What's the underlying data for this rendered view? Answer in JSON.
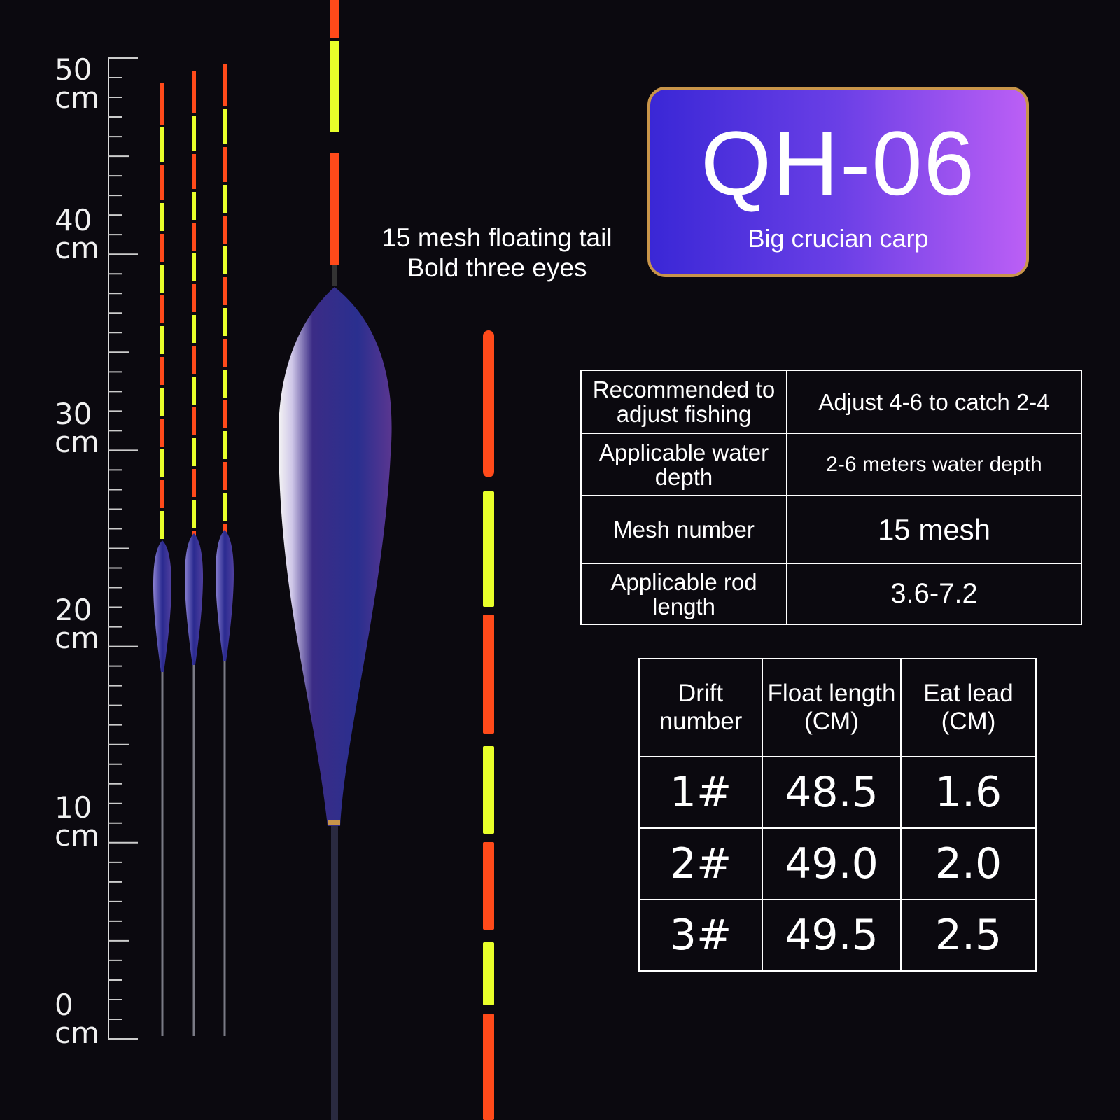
{
  "ruler": {
    "labels": [
      {
        "value": "50",
        "unit": "cm"
      },
      {
        "value": "40",
        "unit": "cm"
      },
      {
        "value": "30",
        "unit": "cm"
      },
      {
        "value": "20",
        "unit": "cm"
      },
      {
        "value": "10",
        "unit": "cm"
      },
      {
        "value": "0",
        "unit": "cm"
      }
    ]
  },
  "subtitle": {
    "line1": "15 mesh floating tail",
    "line2": "Bold three eyes"
  },
  "badge": {
    "model": "QH-06",
    "subtitle": "Big crucian carp"
  },
  "colors": {
    "badge_start": "#3a27d6",
    "badge_end": "#bb5ff5",
    "badge_border": "#c8954a",
    "float_red": "#ff4a1a",
    "float_yellow": "#e8ff2a",
    "float_body": "#2d2a8a"
  },
  "spec_table": {
    "rows": [
      {
        "label": "Recommended to adjust fishing",
        "value": "Adjust 4-6 to catch 2-4"
      },
      {
        "label": "Applicable water depth",
        "value": "2-6 meters water depth"
      },
      {
        "label": "Mesh number",
        "value": "15 mesh"
      },
      {
        "label": "Applicable rod length",
        "value": "3.6-7.2"
      }
    ]
  },
  "size_table": {
    "headers": [
      "Drift number",
      "Float length (CM)",
      "Eat lead (CM)"
    ],
    "rows": [
      [
        "1#",
        "48.5",
        "1.6"
      ],
      [
        "2#",
        "49.0",
        "2.0"
      ],
      [
        "3#",
        "49.5",
        "2.5"
      ]
    ]
  }
}
